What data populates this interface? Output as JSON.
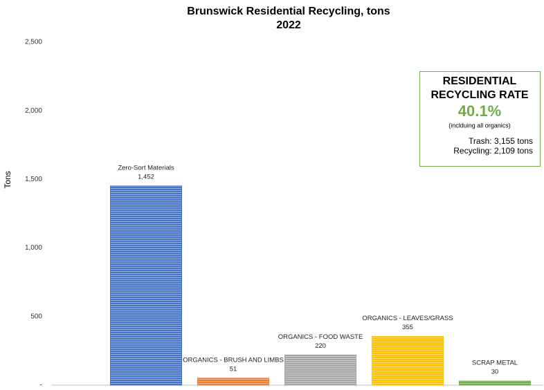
{
  "chart_data": {
    "type": "bar",
    "title": [
      "Brunswick Residential Recycling, tons",
      "2022"
    ],
    "y_label": "Tons",
    "categories": [
      "Zero-Sort Materials",
      "ORGANICS - BRUSH AND LIMBS",
      "ORGANICS - FOOD WASTE",
      "ORGANICS - LEAVES/GRASS",
      "SCRAP METAL"
    ],
    "values": [
      1452,
      51,
      220,
      355,
      30
    ],
    "value_labels": [
      "1,452",
      "51",
      "220",
      "355",
      "30"
    ],
    "colors": [
      "#4472c4",
      "#ed7d31",
      "#a5a5a5",
      "#ffc000",
      "#70ad47"
    ],
    "ylim": [
      0,
      2500
    ],
    "yticks": [
      {
        "value": 0,
        "label": "-"
      },
      500,
      {
        "value": 1000,
        "label": "1,000"
      },
      {
        "value": 1500,
        "label": "1,500"
      },
      {
        "value": 2000,
        "label": "2,000"
      },
      {
        "value": 2500,
        "label": "2,500"
      }
    ],
    "grid": false,
    "annotation": {
      "title": [
        "RESIDENTIAL",
        "RECYCLING RATE"
      ],
      "rate": "40.1%",
      "note": "(inclduing all organics)",
      "lines": [
        "Trash:  3,155 tons",
        "Recycling:  2,109 tons"
      ]
    }
  }
}
